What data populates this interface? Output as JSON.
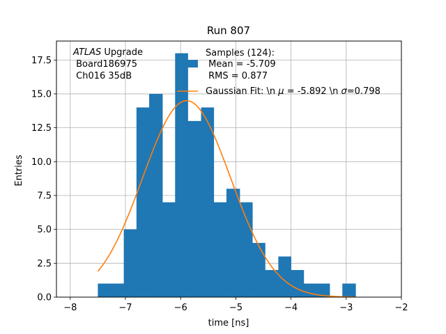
{
  "chart_data": {
    "type": "bar",
    "title": "Run 807",
    "xlabel": "time [ns]",
    "ylabel": "Entries",
    "xlim": [
      -8.25,
      -2.0
    ],
    "ylim": [
      0,
      18.9
    ],
    "grid": true,
    "xticks": [
      -8,
      -7,
      -6,
      -5,
      -4,
      -3,
      -2
    ],
    "xtick_labels": [
      "−8",
      "−7",
      "−6",
      "−5",
      "−4",
      "−3",
      "−2"
    ],
    "yticks": [
      0,
      2.5,
      5,
      7.5,
      10,
      12.5,
      15,
      17.5
    ],
    "ytick_labels": [
      "0.0",
      "2.5",
      "5.0",
      "7.5",
      "10.0",
      "12.5",
      "15.0",
      "17.5"
    ],
    "annotation": {
      "line1_italic": "ATLAS",
      "line1_rest": " Upgrade",
      "line2": " Board186975",
      "line3": " Ch016 35dB"
    },
    "legend": {
      "placement": "top-right",
      "histogram_label_lines": [
        "Samples (124):",
        " Mean = -5.709",
        " RMS = 0.877"
      ],
      "fit_label_parts": [
        "Gaussian Fit: \\n ",
        "μ",
        " = -5.892 \\n ",
        "σ",
        "=0.798"
      ]
    },
    "histogram": {
      "color": "#1f77b4",
      "bin_edges": [
        -7.5,
        -7.27,
        -7.03,
        -6.8,
        -6.57,
        -6.33,
        -6.1,
        -5.87,
        -5.63,
        -5.4,
        -5.17,
        -4.93,
        -4.7,
        -4.47,
        -4.23,
        -4.0,
        -3.77,
        -3.53,
        -3.3,
        -3.07,
        -2.83
      ],
      "counts": [
        1,
        1,
        5,
        14,
        15,
        7,
        18,
        13,
        14,
        7,
        8,
        7,
        4,
        2,
        3,
        2,
        1,
        1,
        0,
        1
      ]
    },
    "fit": {
      "color": "#ff7f0e",
      "mu": -5.892,
      "sigma": 0.798,
      "amplitude": 14.5,
      "x_range": [
        -7.5,
        -2.83
      ]
    }
  }
}
